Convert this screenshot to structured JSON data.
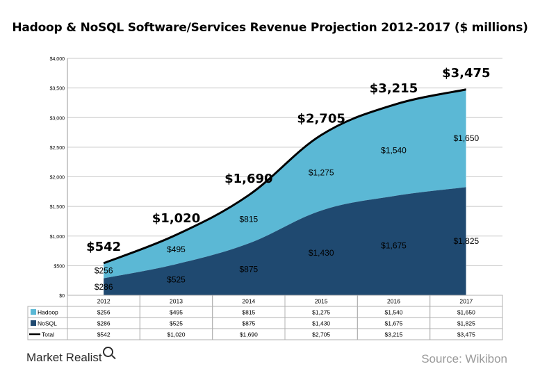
{
  "title": "Hadoop & NoSQL Software/Services Revenue Projection 2012-2017 ($ millions)",
  "brand": "Market Realist",
  "source": "Source: Wikibon",
  "colors": {
    "hadoop": "#5bb8d5",
    "nosql": "#1f4970",
    "total": "#000000",
    "grid": "#c8c8c8"
  },
  "chart_data": {
    "type": "area",
    "stacked": true,
    "categories": [
      "2012",
      "2013",
      "2014",
      "2015",
      "2016",
      "2017"
    ],
    "series": [
      {
        "name": "NoSQL",
        "values": [
          286,
          525,
          875,
          1430,
          1675,
          1825
        ],
        "labels": [
          "$286",
          "$525",
          "$875",
          "$1,430",
          "$1,675",
          "$1,825"
        ]
      },
      {
        "name": "Hadoop",
        "values": [
          256,
          495,
          815,
          1275,
          1540,
          1650
        ],
        "labels": [
          "$256",
          "$495",
          "$815",
          "$1,275",
          "$1,540",
          "$1,650"
        ]
      },
      {
        "name": "Total",
        "type": "line",
        "values": [
          542,
          1020,
          1690,
          2705,
          3215,
          3475
        ],
        "labels": [
          "$542",
          "$1,020",
          "$1,690",
          "$2,705",
          "$3,215",
          "$3,475"
        ]
      }
    ],
    "yticks": [
      0,
      500,
      1000,
      1500,
      2000,
      2500,
      3000,
      3500,
      4000
    ],
    "ytick_labels": [
      "$0",
      "$500",
      "$1,000",
      "$1,500",
      "$2,000",
      "$2,500",
      "$3,000",
      "$3,500",
      "$4,000"
    ],
    "ylim": [
      0,
      4000
    ],
    "grid": true,
    "legend": "data-table",
    "table": {
      "rows": [
        {
          "key": "Hadoop",
          "label": "Hadoop",
          "cells": [
            "$256",
            "$495",
            "$815",
            "$1,275",
            "$1,540",
            "$1,650"
          ]
        },
        {
          "key": "NoSQL",
          "label": "NoSQL",
          "cells": [
            "$286",
            "$525",
            "$875",
            "$1,430",
            "$1,675",
            "$1,825"
          ]
        },
        {
          "key": "Total",
          "label": "Total",
          "cells": [
            "$542",
            "$1,020",
            "$1,690",
            "$2,705",
            "$3,215",
            "$3,475"
          ]
        }
      ]
    }
  }
}
